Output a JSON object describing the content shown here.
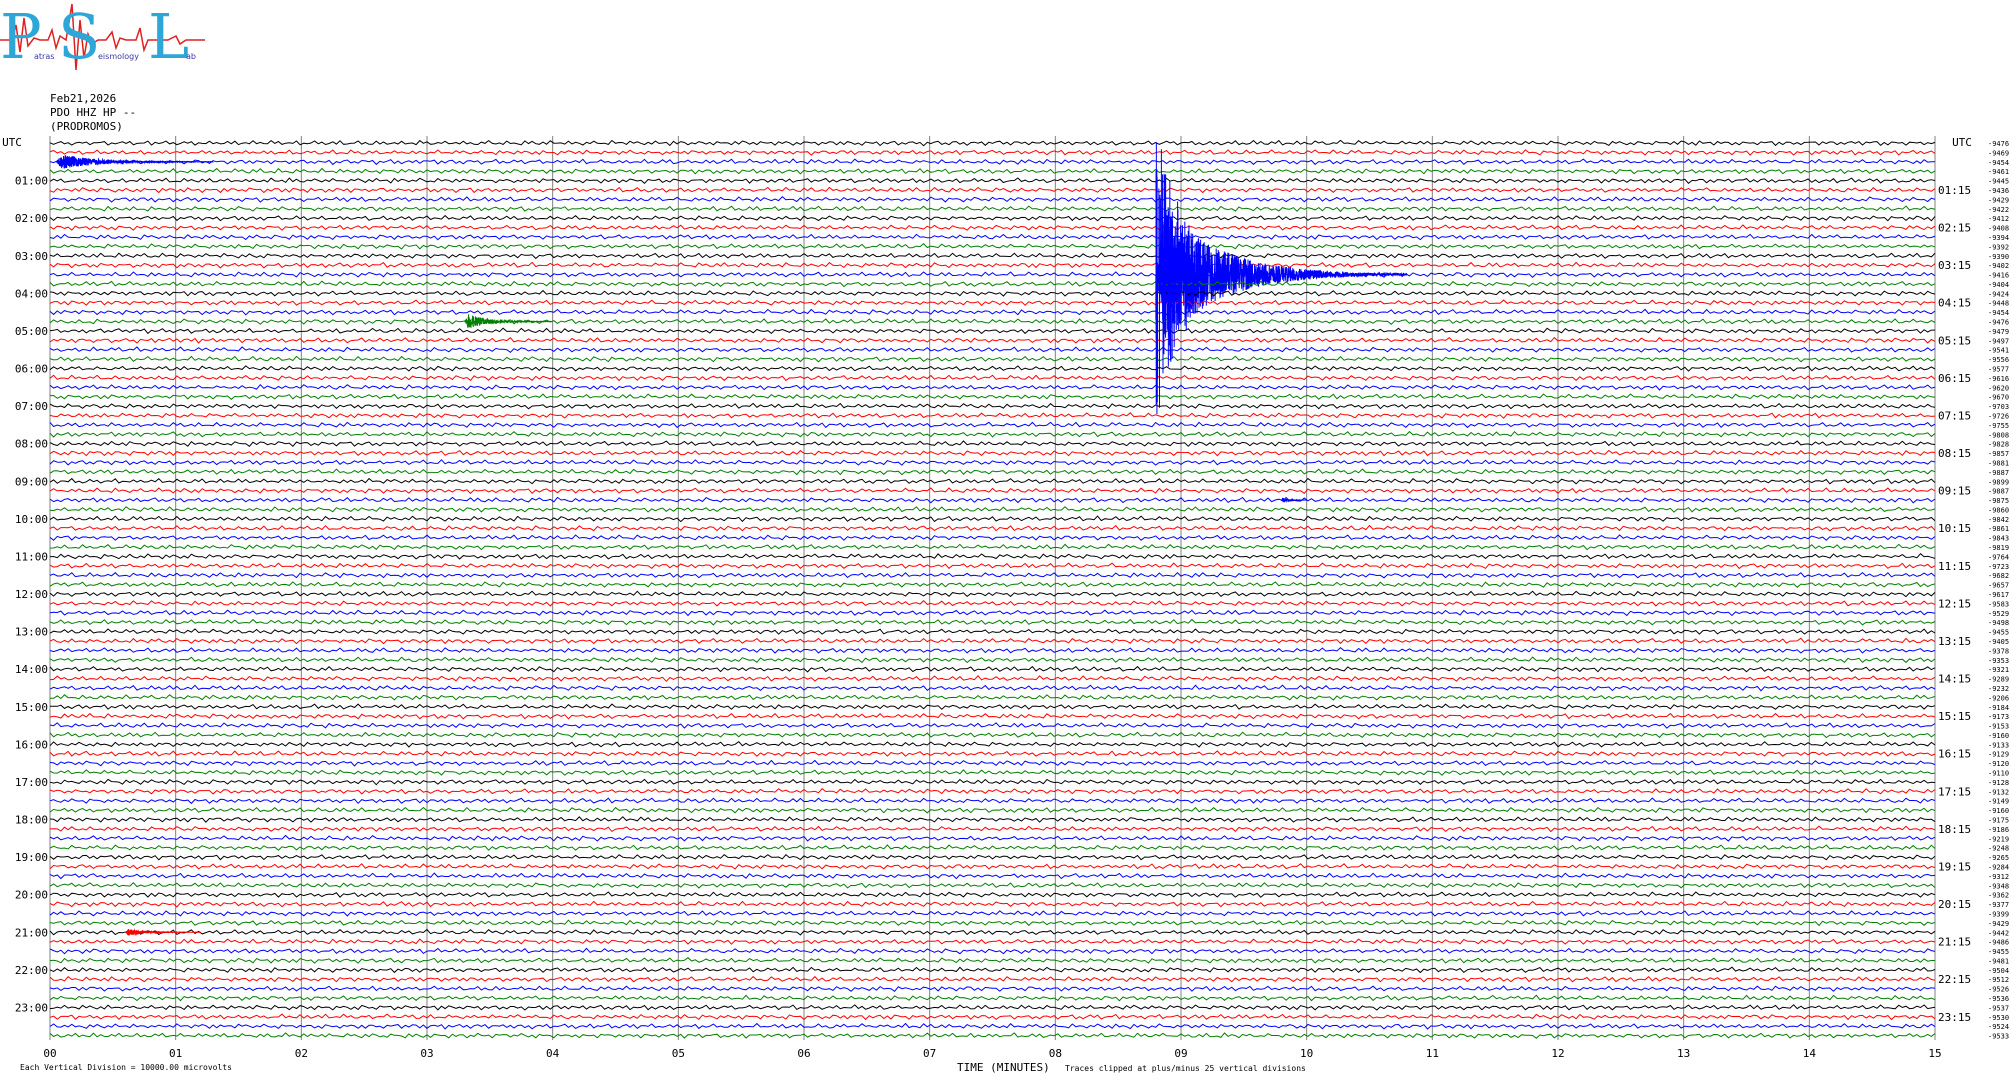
{
  "logo": {
    "letter_p": "P",
    "letter_s": "S",
    "letter_l": "L",
    "word_1": "atras",
    "word_2": "eismology",
    "word_3": "ab",
    "colors": {
      "letters": "#2ea6d8",
      "trace": "#e02020"
    }
  },
  "header": {
    "date": "Feb21,2026",
    "station": "PDO HHZ HP --",
    "location": "(PRODROMOS)"
  },
  "footer": {
    "vertical_division": "Each Vertical Division = 10000.00 microvolts",
    "xlabel": "TIME (MINUTES)",
    "clip_note": "Traces clipped at plus/minus 25 vertical divisions"
  },
  "chart_data": {
    "type": "line",
    "title": "",
    "xlabel": "TIME (MINUTES)",
    "xlim": [
      0,
      15
    ],
    "x_ticks": [
      "00",
      "01",
      "02",
      "03",
      "04",
      "05",
      "06",
      "07",
      "08",
      "09",
      "10",
      "11",
      "12",
      "13",
      "14",
      "15"
    ],
    "utc_label": "UTC",
    "left_hour_labels": [
      "01:00",
      "02:00",
      "03:00",
      "04:00",
      "05:00",
      "06:00",
      "07:00",
      "08:00",
      "09:00",
      "10:00",
      "11:00",
      "12:00",
      "13:00",
      "14:00",
      "15:00",
      "16:00",
      "17:00",
      "18:00",
      "19:00",
      "20:00",
      "21:00",
      "22:00",
      "23:00"
    ],
    "right_hour_labels": [
      "01:15",
      "02:15",
      "03:15",
      "04:15",
      "05:15",
      "06:15",
      "07:15",
      "08:15",
      "09:15",
      "10:15",
      "11:15",
      "12:15",
      "13:15",
      "14:15",
      "15:15",
      "16:15",
      "17:15",
      "18:15",
      "19:15",
      "20:15",
      "21:15",
      "22:15",
      "23:15"
    ],
    "trace_count": 96,
    "minutes_per_trace": 15,
    "trace_colors": [
      "#000000",
      "#ff0000",
      "#0000ff",
      "#008000"
    ],
    "grid": true,
    "trace_offsets": [
      "-9476",
      "-9469",
      "-9454",
      "-9461",
      "-9445",
      "-9436",
      "-9429",
      "-9422",
      "-9412",
      "-9408",
      "-9394",
      "-9392",
      "-9390",
      "-9402",
      "-9416",
      "-9404",
      "-9424",
      "-9448",
      "-9454",
      "-9476",
      "-9479",
      "-9497",
      "-9541",
      "-9556",
      "-9577",
      "-9616",
      "-9620",
      "-9670",
      "-9703",
      "-9726",
      "-9755",
      "-9808",
      "-9828",
      "-9857",
      "-9881",
      "-9887",
      "-9899",
      "-9887",
      "-9875",
      "-9860",
      "-9842",
      "-9861",
      "-9843",
      "-9819",
      "-9764",
      "-9723",
      "-9682",
      "-9657",
      "-9617",
      "-9583",
      "-9529",
      "-9498",
      "-9455",
      "-9405",
      "-9378",
      "-9353",
      "-9321",
      "-9289",
      "-9232",
      "-9206",
      "-9184",
      "-9173",
      "-9153",
      "-9160",
      "-9133",
      "-9129",
      "-9120",
      "-9110",
      "-9128",
      "-9132",
      "-9149",
      "-9160",
      "-9175",
      "-9186",
      "-9219",
      "-9248",
      "-9265",
      "-9284",
      "-9312",
      "-9348",
      "-9362",
      "-9377",
      "-9399",
      "-9429",
      "-9442",
      "-9486",
      "-9455",
      "-9481",
      "-9504",
      "-9512",
      "-9526",
      "-9536",
      "-9537",
      "-9530",
      "-9524",
      "-9533"
    ],
    "events": [
      {
        "trace": 2,
        "start_min": 0.05,
        "end_min": 1.3,
        "amplitude": 9,
        "color_index": 2
      },
      {
        "trace": 19,
        "start_min": 3.3,
        "end_min": 4.0,
        "amplitude": 9,
        "color_index": 3
      },
      {
        "trace": 14,
        "start_min": 8.8,
        "end_min": 10.8,
        "amplitude": 80,
        "color_index": 2
      },
      {
        "trace": 38,
        "start_min": 9.8,
        "end_min": 10.0,
        "amplitude": 3,
        "color_index": 2
      },
      {
        "trace": 84,
        "start_min": 0.6,
        "end_min": 1.2,
        "amplitude": 4,
        "color_index": 1
      }
    ]
  }
}
